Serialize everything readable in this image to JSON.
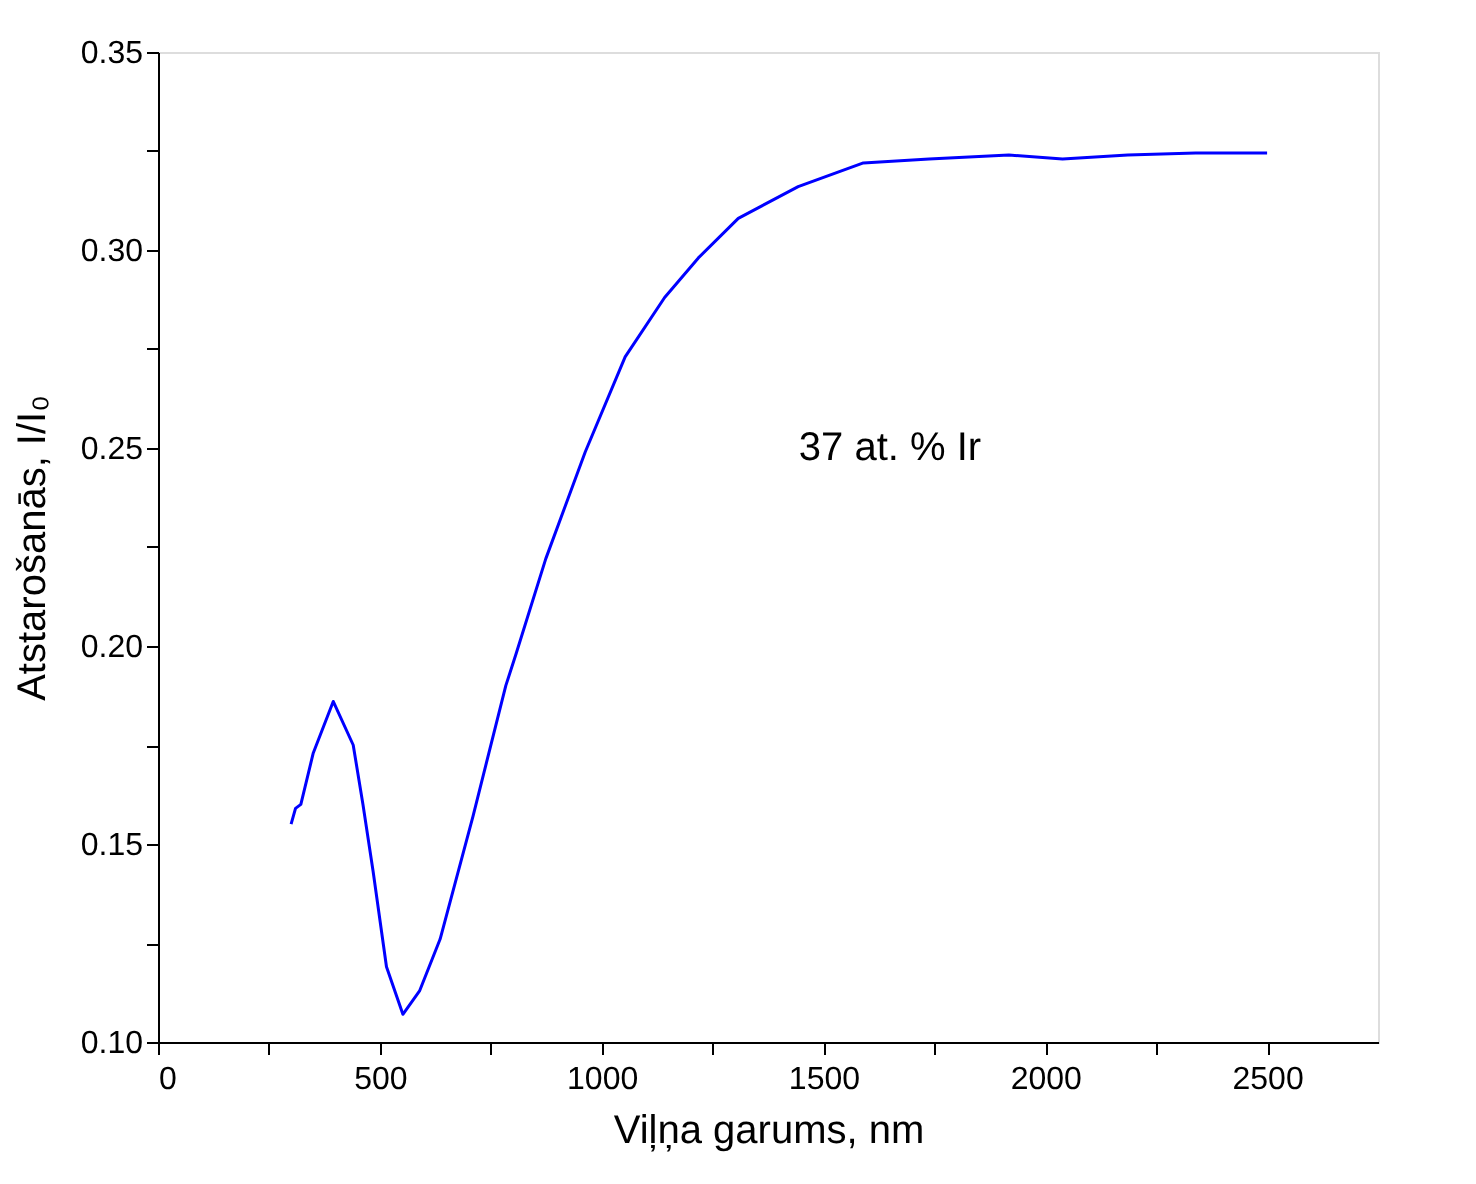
{
  "chart_data": {
    "type": "line",
    "xlabel": "Viļņa garums, nm",
    "ylabel": "Atstarošanās, I/I₀",
    "x": [
      300,
      310,
      322,
      350,
      395,
      440,
      462,
      485,
      515,
      552,
      590,
      636,
      710,
      784,
      807,
      874,
      963,
      1053,
      1142,
      1218,
      1308,
      1443,
      1590,
      1738,
      1918,
      2039,
      2186,
      2339,
      2500
    ],
    "series": [
      {
        "color": "#0000ff",
        "values": [
          0.155,
          0.159,
          0.16,
          0.173,
          0.186,
          0.175,
          0.16,
          0.143,
          0.119,
          0.107,
          0.113,
          0.126,
          0.157,
          0.19,
          0.198,
          0.222,
          0.249,
          0.273,
          0.288,
          0.298,
          0.308,
          0.316,
          0.322,
          0.323,
          0.324,
          0.323,
          0.324,
          0.3245,
          0.3245
        ]
      }
    ],
    "xlim": [
      0,
      2750
    ],
    "ylim": [
      0.1,
      0.35
    ],
    "xticks": [
      0,
      {
        "value": 250,
        "label": null
      },
      500,
      {
        "value": 750,
        "label": null
      },
      1000,
      {
        "value": 1250,
        "label": null
      },
      1500,
      {
        "value": 1750,
        "label": null
      },
      2000,
      {
        "value": 2250,
        "label": null
      },
      2500
    ],
    "yticks": [
      {
        "value": 0.1,
        "label": "0.10"
      },
      {
        "value": 0.125,
        "label": null
      },
      {
        "value": 0.15,
        "label": "0.15"
      },
      {
        "value": 0.175,
        "label": null
      },
      {
        "value": 0.2,
        "label": "0.20"
      },
      {
        "value": 0.225,
        "label": null
      },
      {
        "value": 0.25,
        "label": "0.25"
      },
      {
        "value": 0.275,
        "label": null
      },
      {
        "value": 0.3,
        "label": "0.30"
      },
      {
        "value": 0.325,
        "label": null
      },
      {
        "value": 0.35,
        "label": "0.35"
      }
    ],
    "annotations": [
      "37 at. % Ir"
    ],
    "grid": false,
    "marker": "none",
    "line_style": "solid"
  }
}
